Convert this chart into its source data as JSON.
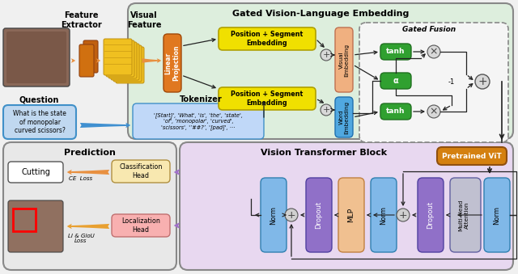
{
  "bg_color": "#f0f0f0",
  "top_panel_bg": "#ddeedd",
  "top_panel_title": "Gated Vision-Language Embedding",
  "bottom_left_bg": "#e8e8e8",
  "bottom_left_title": "Prediction",
  "bottom_right_bg": "#e8d8f0",
  "bottom_right_title": "Vision Transformer Block",
  "gated_fusion_title": "Gated Fusion",
  "color_orange_proj": "#e07820",
  "color_yellow_embed": "#f0e000",
  "color_green_gate": "#30a030",
  "color_blue_word": "#50a8e0",
  "color_peach_vis": "#f0b080",
  "color_purple_block": "#9070c8",
  "color_blue_norm": "#80b8e8",
  "color_peach_mlp": "#f0c090",
  "color_gray_mha": "#c0c0d0",
  "color_pretrained": "#d48010",
  "color_white": "#ffffff",
  "color_yellow_head": "#f8e8b0",
  "color_pink_head": "#f8b0b0",
  "arrow_orange": "#e89040",
  "arrow_blue": "#4090d0",
  "arrow_purple": "#a070c8",
  "arrow_black": "#222222"
}
